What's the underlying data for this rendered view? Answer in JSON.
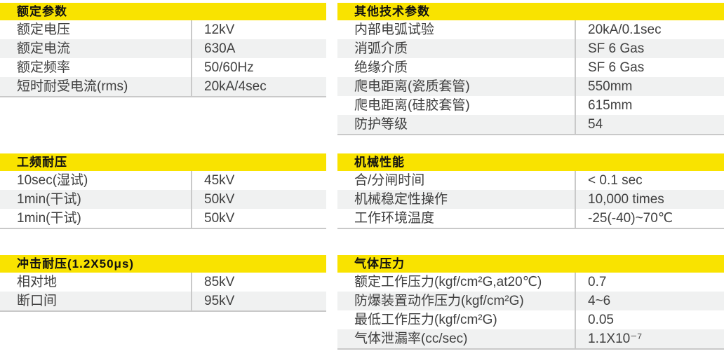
{
  "colors": {
    "header_bg": "#F9E300",
    "header_text": "#111111",
    "row_text": "#3F3F3F",
    "row_alt_bg": "#F0F1F1",
    "divider": "#C9C9C9"
  },
  "sections": [
    {
      "title": "额定参数",
      "rows": [
        {
          "label": "额定电压",
          "value": "12kV"
        },
        {
          "label": "额定电流",
          "value": "630A"
        },
        {
          "label": "额定频率",
          "value": "50/60Hz"
        },
        {
          "label": "短时耐受电流(rms)",
          "value": "20kA/4sec"
        }
      ]
    },
    {
      "title": "其他技术参数",
      "rows": [
        {
          "label": "内部电弧试验",
          "value": "20kA/0.1sec"
        },
        {
          "label": "消弧介质",
          "value": "SF 6 Gas"
        },
        {
          "label": "绝缘介质",
          "value": "SF 6 Gas"
        },
        {
          "label": "爬电距离(瓷质套管)",
          "value": "550mm"
        },
        {
          "label": "爬电距离(硅胶套管)",
          "value": "615mm"
        },
        {
          "label": "防护等级",
          "value": "54"
        }
      ]
    },
    {
      "title": "工频耐压",
      "rows": [
        {
          "label": "10sec(湿试)",
          "value": "45kV"
        },
        {
          "label": "1min(干试)",
          "value": "50kV"
        },
        {
          "label": "1min(干试)",
          "value": "50kV"
        }
      ]
    },
    {
      "title": "机械性能",
      "rows": [
        {
          "label": "合/分闸时间",
          "value": "< 0.1 sec"
        },
        {
          "label": "机械稳定性操作",
          "value": "10,000 times"
        },
        {
          "label": "工作环境温度",
          "value": "-25(-40)~70℃"
        }
      ]
    },
    {
      "title": "冲击耐压(1.2X50μs)",
      "rows": [
        {
          "label": "相对地",
          "value": "85kV"
        },
        {
          "label": "断口间",
          "value": "95kV"
        }
      ]
    },
    {
      "title": "气体压力",
      "rows": [
        {
          "label": "额定工作压力(kgf/cm²G,at20℃)",
          "value": "0.7"
        },
        {
          "label": "防爆装置动作压力(kgf/cm²G)",
          "value": "4~6"
        },
        {
          "label": "最低工作压力(kgf/cm²G)",
          "value": "0.05"
        },
        {
          "label": "气体泄漏率(cc/sec)",
          "value": "1.1X10⁻⁷"
        }
      ]
    }
  ]
}
